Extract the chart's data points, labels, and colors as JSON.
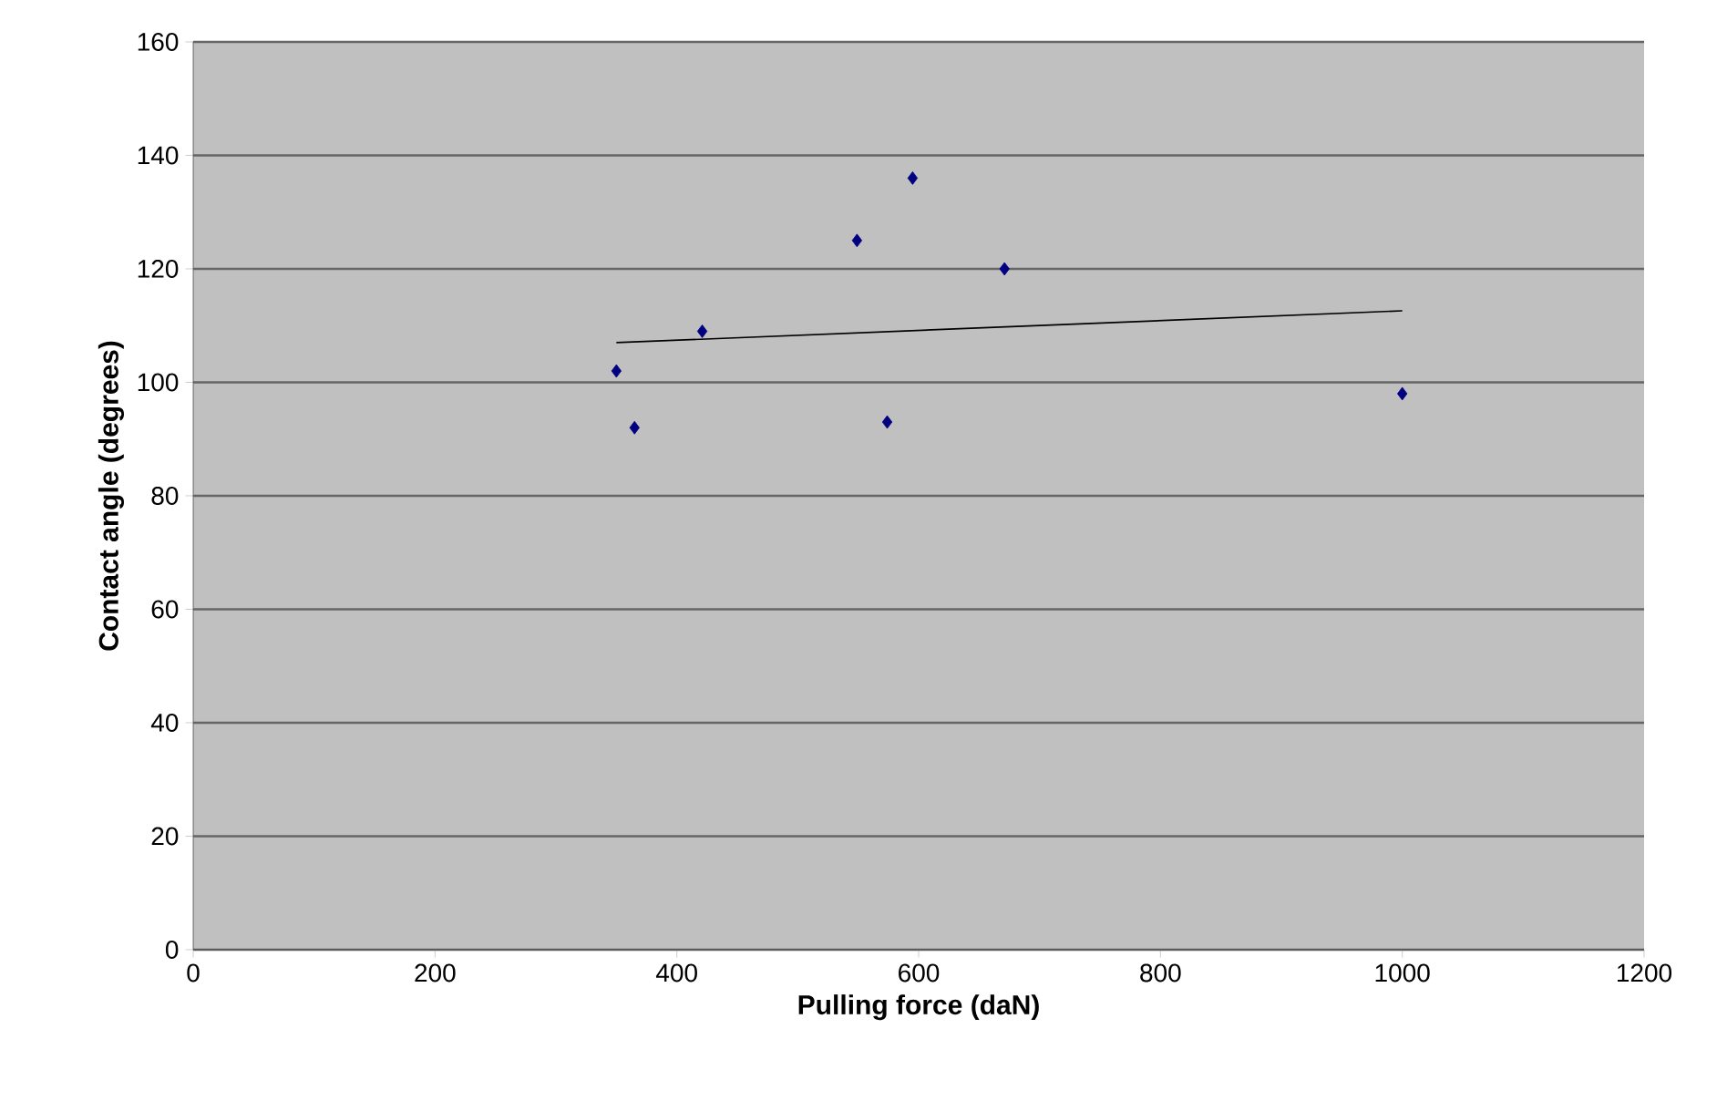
{
  "chart_data": {
    "type": "scatter",
    "xlabel": "Pulling force (daN)",
    "ylabel": "Contact angle (degrees)",
    "xlim": [
      0,
      1200
    ],
    "xticks": [
      0,
      200,
      400,
      600,
      800,
      1000,
      1200
    ],
    "ylim": [
      0,
      160
    ],
    "yticks": [
      0,
      20,
      40,
      60,
      80,
      100,
      120,
      140,
      160
    ],
    "grid": "y",
    "marker": "diamond",
    "series": [
      {
        "color": "#000080",
        "x": [
          350,
          365,
          421,
          549,
          574,
          595,
          671,
          1000
        ],
        "values": [
          102,
          92,
          109,
          125,
          93,
          136,
          120,
          98
        ]
      },
      {
        "type": "line",
        "color": "#000000",
        "marker": "none",
        "x": [
          350,
          1000
        ],
        "values": [
          107,
          112.6
        ]
      }
    ]
  }
}
